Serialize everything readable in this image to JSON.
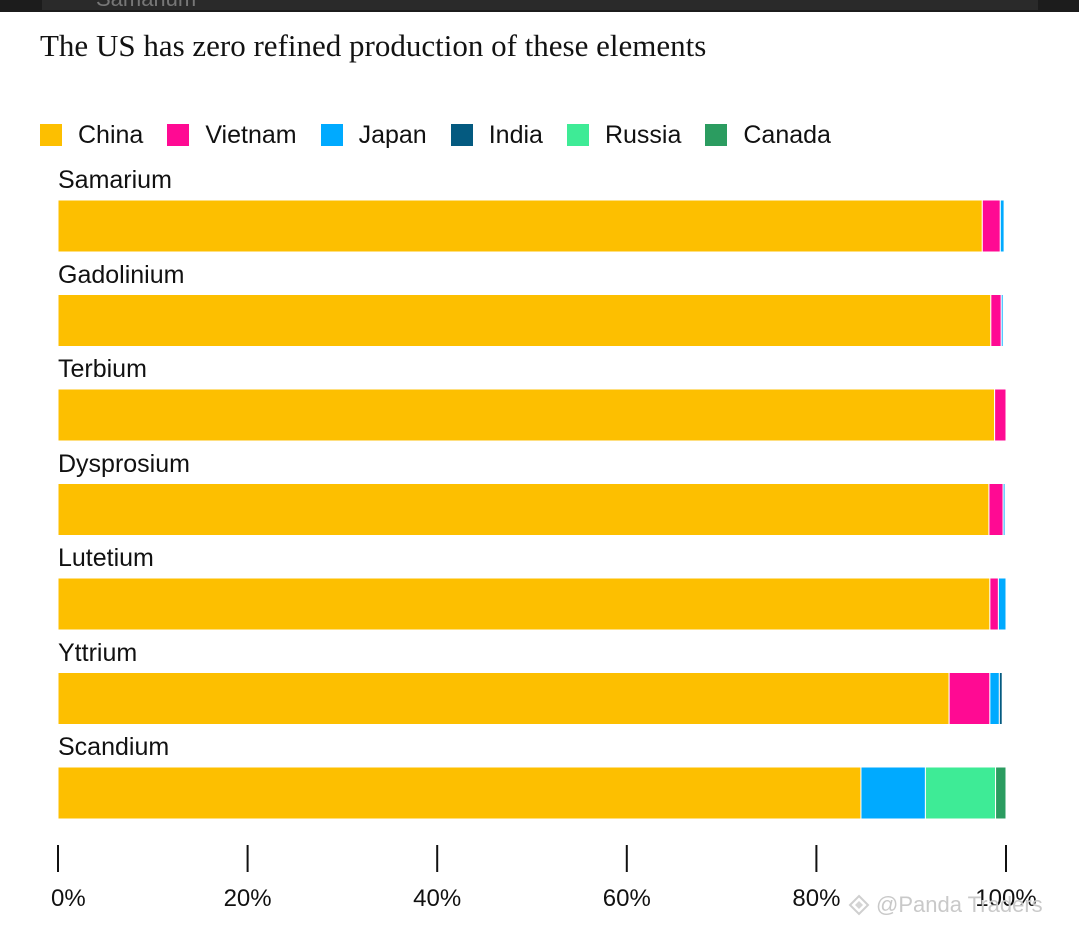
{
  "top_strip": {
    "text": "Samarium"
  },
  "title": "The US has zero refined production of these elements",
  "colors": {
    "China": "#fdbf00",
    "Vietnam": "#ff0a93",
    "Japan": "#00aaff",
    "India": "#045a80",
    "Russia": "#3eeb96",
    "Canada": "#2b9c60"
  },
  "chart_data": {
    "type": "bar",
    "orientation": "horizontal",
    "stacked": true,
    "title": "The US has zero refined production of these elements",
    "categories": [
      "Samarium",
      "Gadolinium",
      "Terbium",
      "Dysprosium",
      "Lutetium",
      "Yttrium",
      "Scandium"
    ],
    "series": [
      {
        "name": "China",
        "values": [
          97.5,
          98.4,
          98.8,
          98.2,
          98.3,
          94.0,
          84.7
        ]
      },
      {
        "name": "Vietnam",
        "values": [
          1.9,
          1.1,
          1.2,
          1.5,
          0.9,
          4.3,
          0.0
        ]
      },
      {
        "name": "Japan",
        "values": [
          0.4,
          0.2,
          0.0,
          0.2,
          0.8,
          1.0,
          6.8
        ]
      },
      {
        "name": "India",
        "values": [
          0.0,
          0.0,
          0.0,
          0.0,
          0.0,
          0.3,
          0.0
        ]
      },
      {
        "name": "Russia",
        "values": [
          0.0,
          0.0,
          0.0,
          0.0,
          0.0,
          0.0,
          7.4
        ]
      },
      {
        "name": "Canada",
        "values": [
          0.0,
          0.0,
          0.0,
          0.0,
          0.0,
          0.0,
          1.1
        ]
      }
    ],
    "xlim": [
      0,
      100
    ],
    "x_ticks": [
      "0%",
      "20%",
      "40%",
      "60%",
      "80%",
      "100%"
    ],
    "legend_position": "top-left",
    "grid": false
  },
  "watermark": {
    "text": "@Panda Traders"
  }
}
